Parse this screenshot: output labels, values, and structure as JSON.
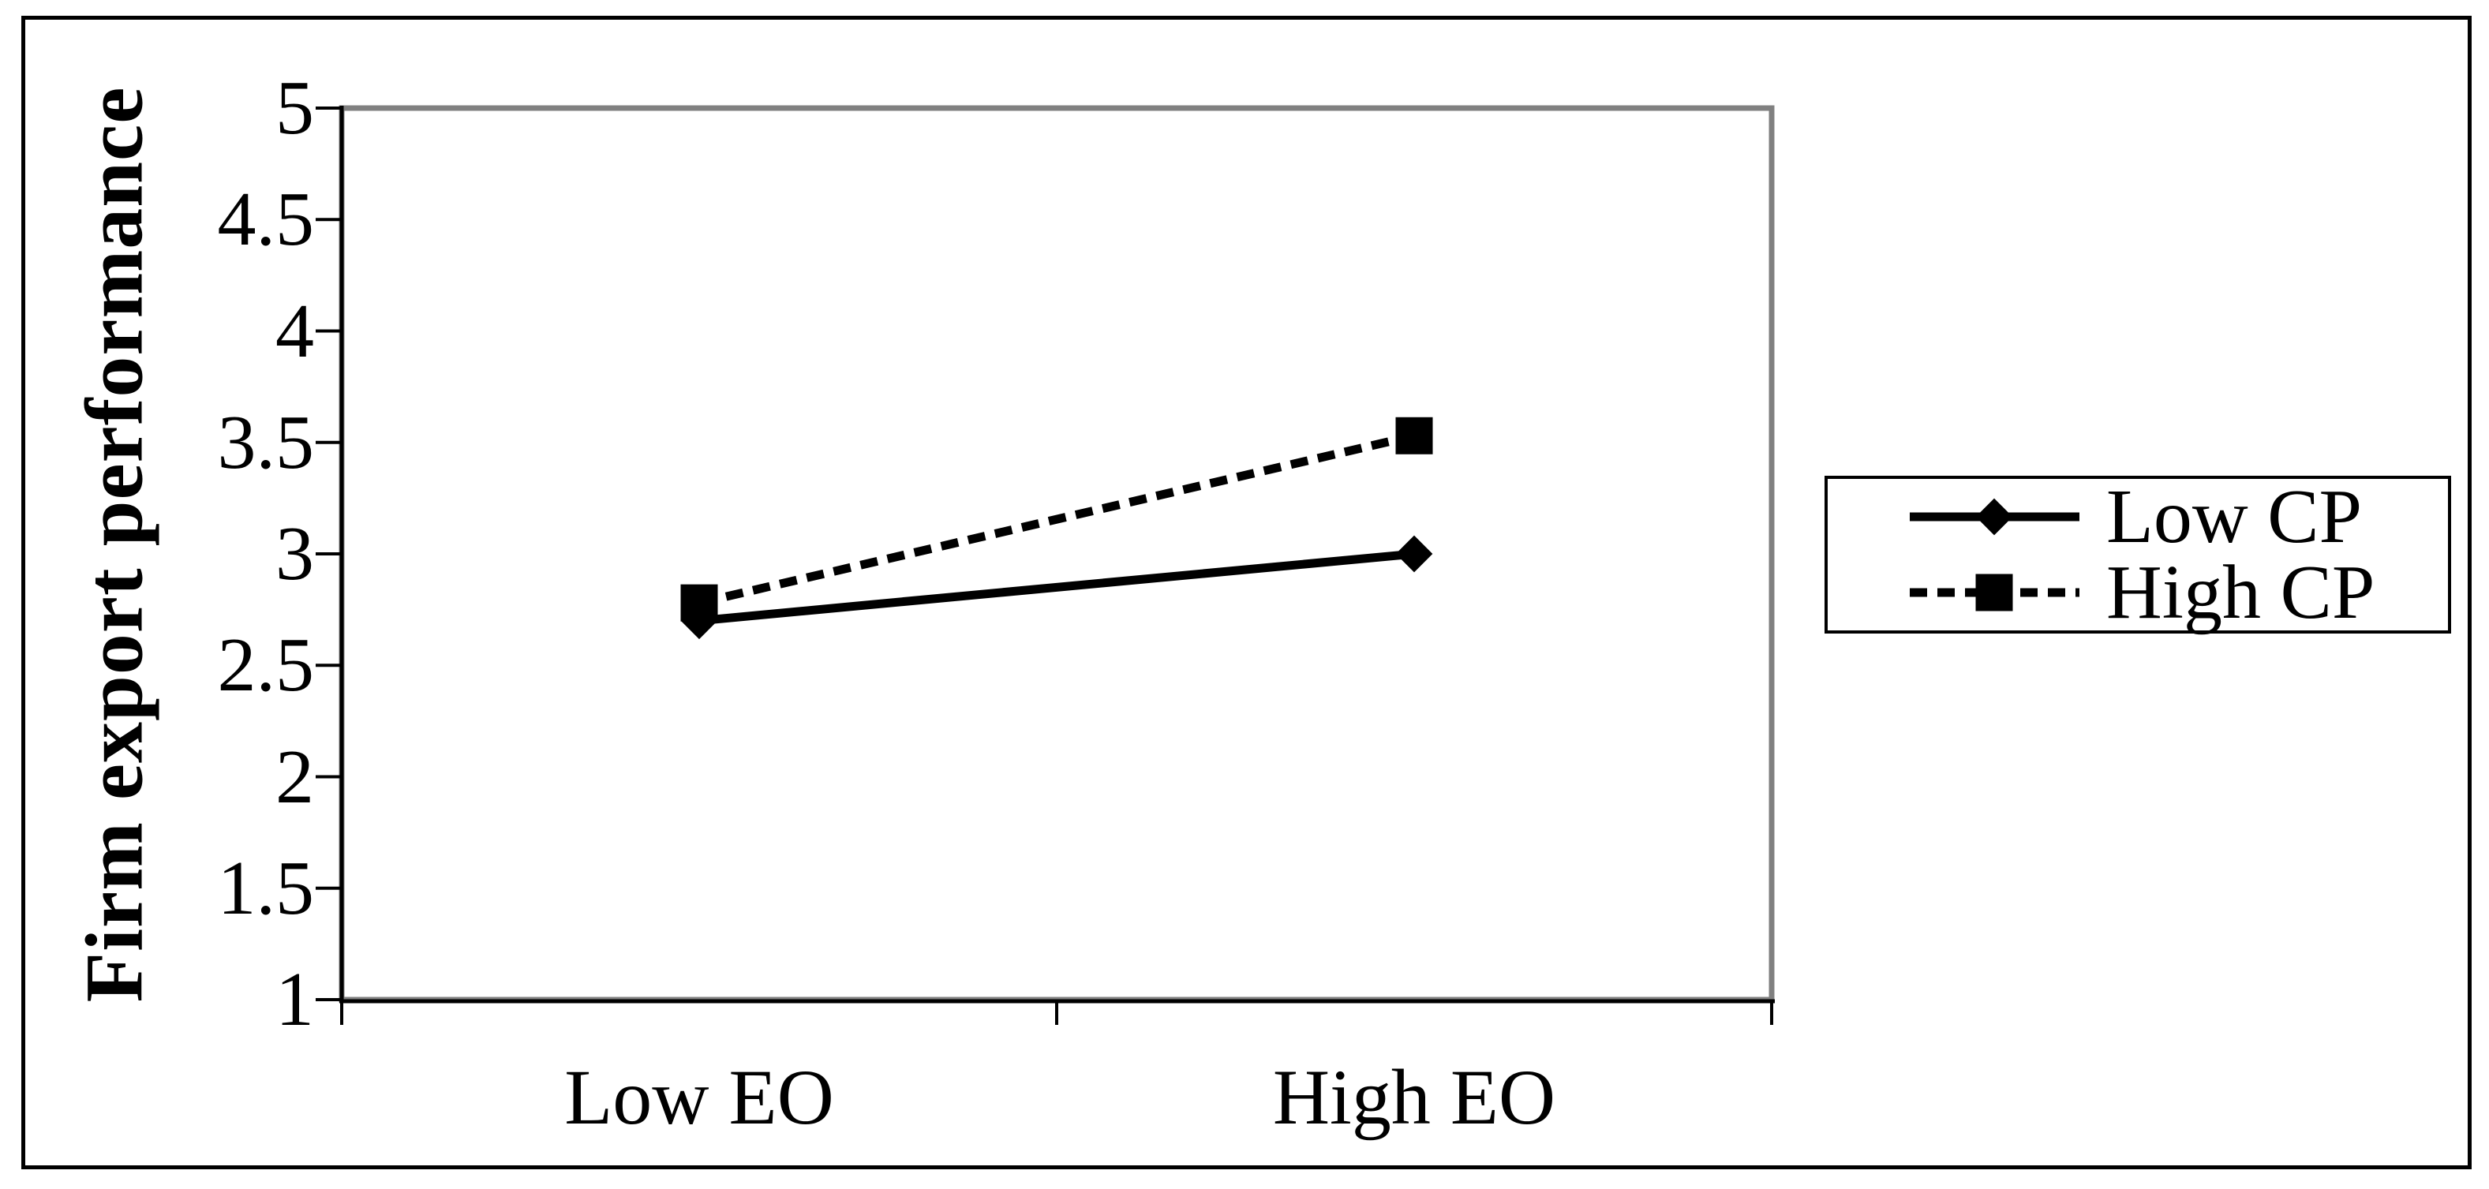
{
  "figure": {
    "background": "#ffffff",
    "border_color": "#000000"
  },
  "colors": {
    "series": "#000000",
    "plot_border": "#808080",
    "axis": "#000000"
  },
  "chart_data": {
    "type": "line",
    "title": "",
    "xlabel": "",
    "ylabel": "Firm export performance",
    "categories": [
      "Low EO",
      "High EO"
    ],
    "series": [
      {
        "name": "Low CP",
        "values": [
          2.7,
          3.0
        ],
        "line_style": "solid",
        "marker": "diamond"
      },
      {
        "name": "High CP",
        "values": [
          2.78,
          3.53
        ],
        "line_style": "dashed",
        "marker": "square"
      }
    ],
    "ylim": [
      1,
      5
    ],
    "ytick_step": 0.5,
    "yticks": [
      "5",
      "4.5",
      "4",
      "3.5",
      "3",
      "2.5",
      "2",
      "1.5",
      "1"
    ],
    "grid": false,
    "legend_position": "right"
  }
}
